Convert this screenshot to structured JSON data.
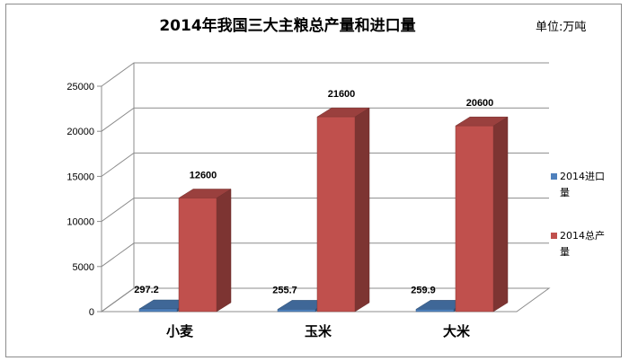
{
  "chart_data": {
    "type": "bar",
    "title": "2014年我国三大主粮总产量和进口量",
    "unit_label": "单位:万吨",
    "categories": [
      "小麦",
      "玉米",
      "大米"
    ],
    "series": [
      {
        "name": "2014进口量",
        "values": [
          297.2,
          255.7,
          259.9
        ],
        "color": "#4f81bd"
      },
      {
        "name": "2014总产量",
        "values": [
          12600,
          21600,
          20600
        ],
        "color": "#c0504d"
      }
    ],
    "data_labels": [
      [
        "297.2",
        "255.7",
        "259.9"
      ],
      [
        "12600",
        "21600",
        "20600"
      ]
    ],
    "y_ticks": [
      "0",
      "5000",
      "10000",
      "15000",
      "20000",
      "25000"
    ],
    "ylim": [
      0,
      25000
    ],
    "style": "3d",
    "grid": true,
    "legend_position": "right"
  }
}
